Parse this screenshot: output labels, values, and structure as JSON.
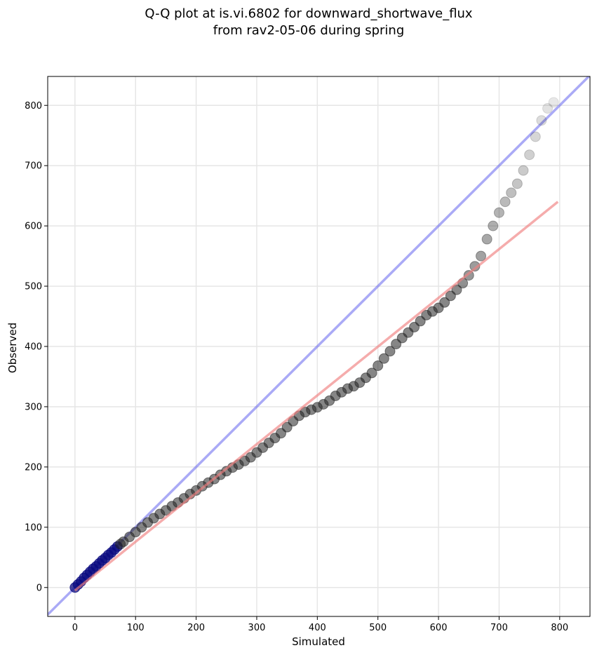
{
  "chart_data": {
    "type": "scatter",
    "title_line1": "Q-Q plot at is.vi.6802 for downward_shortwave_flux",
    "title_line2": "from rav2-05-06 during spring",
    "xlabel": "Simulated",
    "ylabel": "Observed",
    "xlim": [
      -45,
      850
    ],
    "ylim": [
      -48,
      848
    ],
    "xticks": [
      0,
      100,
      200,
      300,
      400,
      500,
      600,
      700,
      800
    ],
    "yticks": [
      0,
      100,
      200,
      300,
      400,
      500,
      600,
      700,
      800
    ],
    "grid": true,
    "quantile_points": [
      [
        0,
        0
      ],
      [
        5,
        5
      ],
      [
        10,
        10
      ],
      [
        15,
        16
      ],
      [
        20,
        21
      ],
      [
        25,
        26
      ],
      [
        30,
        31
      ],
      [
        35,
        35
      ],
      [
        40,
        40
      ],
      [
        45,
        45
      ],
      [
        50,
        49
      ],
      [
        55,
        54
      ],
      [
        60,
        58
      ],
      [
        65,
        63
      ],
      [
        70,
        68
      ],
      [
        75,
        72
      ],
      [
        80,
        76
      ],
      [
        90,
        84
      ],
      [
        100,
        92
      ],
      [
        110,
        100
      ],
      [
        120,
        108
      ],
      [
        130,
        115
      ],
      [
        140,
        122
      ],
      [
        150,
        128
      ],
      [
        160,
        135
      ],
      [
        170,
        141
      ],
      [
        180,
        148
      ],
      [
        190,
        155
      ],
      [
        200,
        161
      ],
      [
        210,
        168
      ],
      [
        220,
        174
      ],
      [
        230,
        180
      ],
      [
        240,
        187
      ],
      [
        250,
        193
      ],
      [
        260,
        199
      ],
      [
        270,
        204
      ],
      [
        280,
        210
      ],
      [
        290,
        216
      ],
      [
        300,
        224
      ],
      [
        310,
        232
      ],
      [
        320,
        240
      ],
      [
        330,
        248
      ],
      [
        340,
        256
      ],
      [
        350,
        266
      ],
      [
        360,
        276
      ],
      [
        370,
        285
      ],
      [
        380,
        291
      ],
      [
        390,
        295
      ],
      [
        400,
        299
      ],
      [
        410,
        304
      ],
      [
        420,
        310
      ],
      [
        430,
        318
      ],
      [
        440,
        324
      ],
      [
        450,
        330
      ],
      [
        460,
        334
      ],
      [
        470,
        340
      ],
      [
        480,
        348
      ],
      [
        490,
        356
      ],
      [
        500,
        368
      ],
      [
        510,
        380
      ],
      [
        520,
        392
      ],
      [
        530,
        404
      ],
      [
        540,
        414
      ],
      [
        550,
        423
      ],
      [
        560,
        432
      ],
      [
        570,
        442
      ],
      [
        580,
        452
      ],
      [
        590,
        458
      ],
      [
        600,
        464
      ],
      [
        610,
        473
      ],
      [
        620,
        484
      ],
      [
        630,
        494
      ],
      [
        640,
        505
      ],
      [
        650,
        518
      ],
      [
        660,
        533
      ],
      [
        670,
        550
      ],
      [
        680,
        578
      ],
      [
        690,
        600
      ],
      [
        700,
        622
      ],
      [
        710,
        640
      ],
      [
        720,
        655
      ],
      [
        730,
        670
      ],
      [
        740,
        692
      ],
      [
        750,
        718
      ],
      [
        760,
        748
      ],
      [
        770,
        775
      ],
      [
        780,
        795
      ],
      [
        790,
        805
      ]
    ],
    "reference_line_1to1": {
      "color": "#5555ee",
      "from": [
        -45,
        -45
      ],
      "to": [
        850,
        850
      ]
    },
    "fit_line": {
      "color": "#f08080",
      "from": [
        0,
        -5
      ],
      "to": [
        797,
        640
      ]
    },
    "point_color": "#222222",
    "low_point_color": "#0b0b80"
  }
}
